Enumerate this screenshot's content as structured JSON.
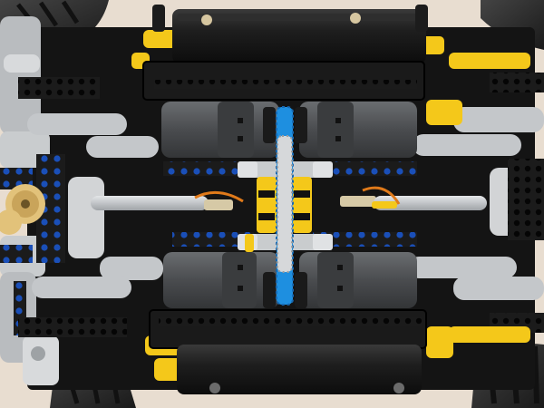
{
  "image": {
    "subject": "lego-technic-chassis-underside",
    "palette": {
      "background": "#e8ddd0",
      "chassis": "#121212",
      "beam_dark": "#2a2a2a",
      "motor_grey": "#4d4f52",
      "light_grey": "#b9bcbf",
      "white_grey": "#d8dadc",
      "yellow": "#f4c81a",
      "blue": "#1e8fe0",
      "pin_blue": "#1a4fb8",
      "orange": "#e07a1a",
      "tire": "#2b2b2b"
    }
  }
}
